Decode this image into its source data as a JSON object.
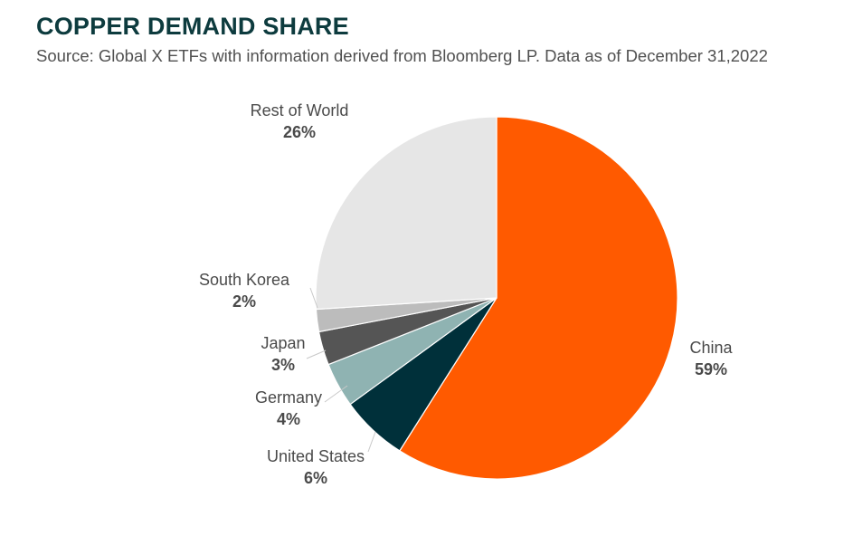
{
  "title": "COPPER DEMAND SHARE",
  "subtitle": "Source: Global X ETFs with information derived from Bloomberg LP. Data as of December 31,2022",
  "chart_data": {
    "type": "pie",
    "title": "COPPER DEMAND SHARE",
    "subtitle": "Source: Global X ETFs with information derived from Bloomberg LP. Data as of December 31,2022",
    "slices": [
      {
        "label": "China",
        "value": 59,
        "value_label": "59%",
        "color": "#ff5a00"
      },
      {
        "label": "United States",
        "value": 6,
        "value_label": "6%",
        "color": "#00303a"
      },
      {
        "label": "Germany",
        "value": 4,
        "value_label": "4%",
        "color": "#8fb3b2"
      },
      {
        "label": "Japan",
        "value": 3,
        "value_label": "3%",
        "color": "#555555"
      },
      {
        "label": "South Korea",
        "value": 2,
        "value_label": "2%",
        "color": "#bcbcbc"
      },
      {
        "label": "Rest of World",
        "value": 26,
        "value_label": "26%",
        "color": "#e6e6e6"
      }
    ],
    "start_angle": "12 o'clock",
    "direction": "clockwise",
    "legend": "none"
  }
}
